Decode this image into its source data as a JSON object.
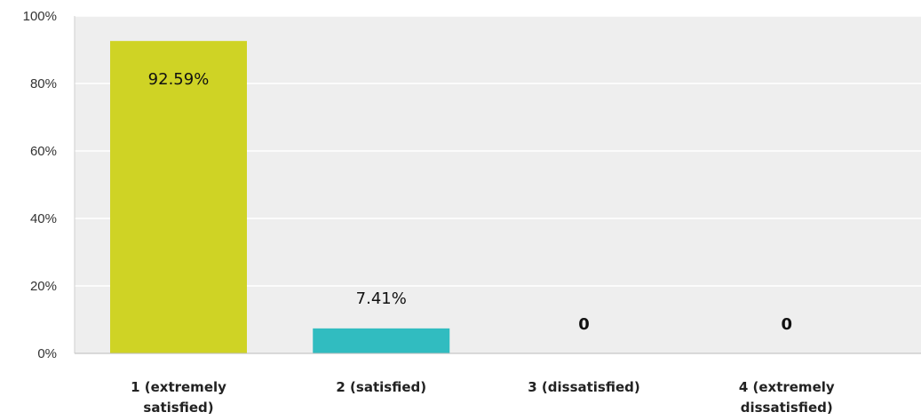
{
  "chart_data": {
    "type": "bar",
    "categories": [
      [
        "1 (extremely",
        "satisfied)"
      ],
      [
        "2 (satisfied)"
      ],
      [
        "3 (dissatisfied)"
      ],
      [
        "4 (extremely",
        "dissatisfied)"
      ]
    ],
    "values": [
      92.59,
      7.41,
      0,
      0
    ],
    "data_labels": [
      "92.59%",
      "7.41%",
      "0",
      "0"
    ],
    "y_ticks": [
      "0%",
      "20%",
      "40%",
      "60%",
      "80%",
      "100%"
    ],
    "ylim": [
      0,
      100
    ],
    "grid": true,
    "title": "",
    "xlabel": "",
    "ylabel": "",
    "colors": {
      "plot_background": "#eeeeee",
      "gridline": "#ffffff",
      "axis": "#bbbbbb",
      "bars": [
        "#cfd325",
        "#31bcc0",
        "#cccccc",
        "#cccccc"
      ]
    }
  }
}
